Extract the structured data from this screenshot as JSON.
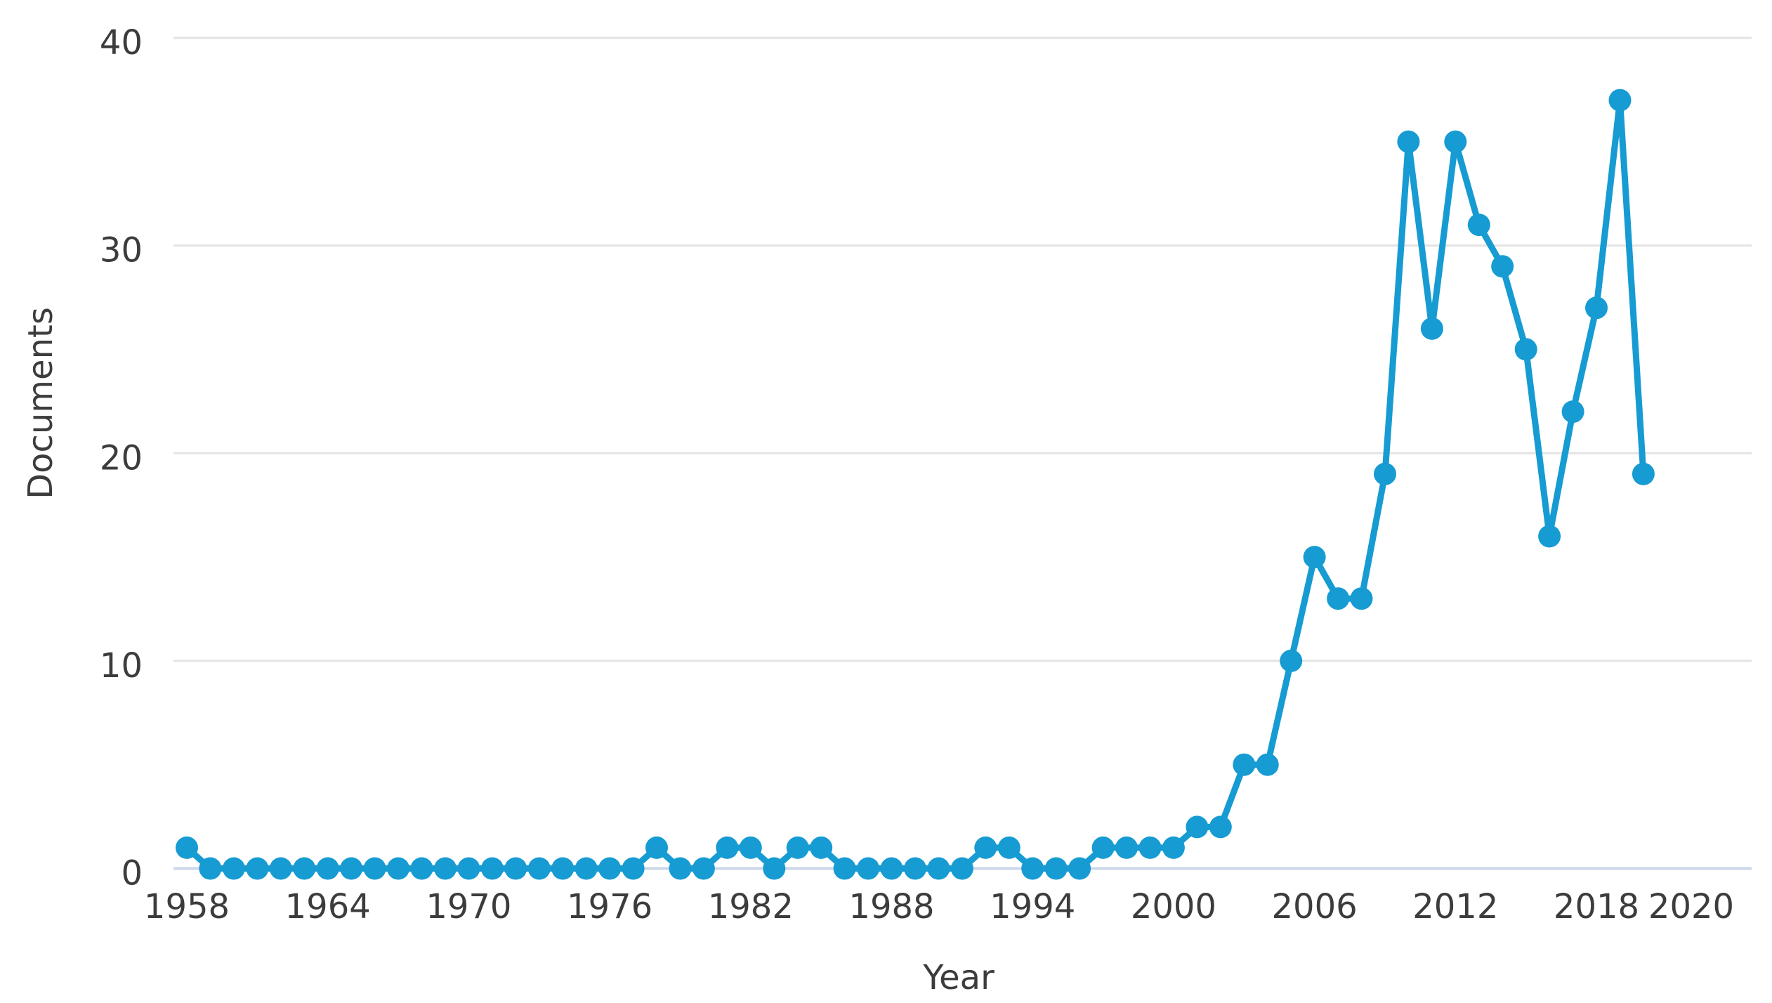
{
  "chart_data": {
    "type": "line",
    "title": "",
    "xlabel": "Year",
    "ylabel": "Documents",
    "legend_position": "none",
    "grid": true,
    "xlim": [
      1958,
      2020
    ],
    "ylim": [
      0,
      40
    ],
    "x_tick_labels": [
      1958,
      1964,
      1970,
      1976,
      1982,
      1988,
      1994,
      2000,
      2006,
      2012,
      2018,
      2020
    ],
    "y_tick_labels": [
      0,
      10,
      20,
      30,
      40
    ],
    "years": [
      1958,
      1959,
      1960,
      1961,
      1962,
      1963,
      1964,
      1965,
      1966,
      1967,
      1968,
      1969,
      1970,
      1971,
      1972,
      1973,
      1974,
      1975,
      1976,
      1977,
      1978,
      1979,
      1980,
      1981,
      1982,
      1983,
      1984,
      1985,
      1986,
      1987,
      1988,
      1989,
      1990,
      1991,
      1992,
      1993,
      1994,
      1995,
      1996,
      1997,
      1998,
      1999,
      2000,
      2001,
      2002,
      2003,
      2004,
      2005,
      2006,
      2007,
      2008,
      2009,
      2010,
      2011,
      2012,
      2013,
      2014,
      2015,
      2016,
      2017,
      2018,
      2019,
      2020
    ],
    "values": [
      1,
      0,
      0,
      0,
      0,
      0,
      0,
      0,
      0,
      0,
      0,
      0,
      0,
      0,
      0,
      0,
      0,
      0,
      0,
      0,
      1,
      0,
      0,
      1,
      1,
      0,
      1,
      1,
      0,
      0,
      0,
      0,
      0,
      0,
      1,
      1,
      0,
      0,
      0,
      1,
      1,
      1,
      1,
      2,
      2,
      5,
      5,
      10,
      15,
      13,
      13,
      19,
      35,
      26,
      35,
      31,
      29,
      25,
      16,
      22,
      27,
      37,
      19
    ],
    "colors": {
      "series": "#169bd2",
      "gridline": "#e3e3e3",
      "axis_line": "#ccd7ea",
      "labels": "#3c3c3c",
      "background": "#ffffff"
    }
  }
}
